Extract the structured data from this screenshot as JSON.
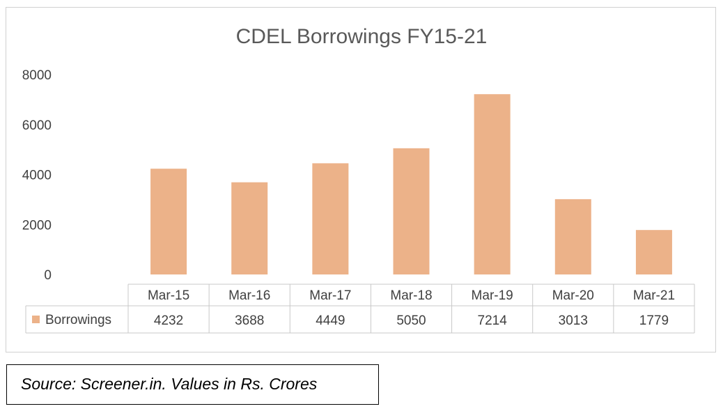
{
  "chart_data": {
    "type": "bar",
    "title": "CDEL Borrowings FY15-21",
    "categories": [
      "Mar-15",
      "Mar-16",
      "Mar-17",
      "Mar-18",
      "Mar-19",
      "Mar-20",
      "Mar-21"
    ],
    "series": [
      {
        "name": "Borrowings",
        "values": [
          4232,
          3688,
          4449,
          5050,
          7214,
          3013,
          1779
        ]
      }
    ],
    "ylim": [
      0,
      8000
    ],
    "yticks": [
      0,
      2000,
      4000,
      6000,
      8000
    ],
    "ytick_labels": [
      "0",
      "2000",
      "4000",
      "6000",
      "8000"
    ],
    "data_table": true,
    "grid": false,
    "bar_color": "#ecb289"
  },
  "source_note": "Source: Screener.in.  Values in Rs. Crores"
}
